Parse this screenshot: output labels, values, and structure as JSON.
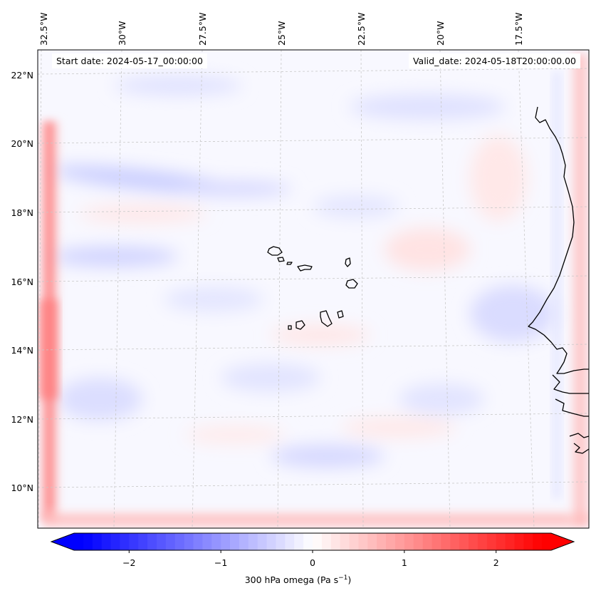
{
  "map": {
    "start_date": "Start date: 2024-05-17_00:00:00",
    "valid_date": "Valid_date: 2024-05-18T20:00:00.00",
    "lon_labels": [
      "32.5°W",
      "30°W",
      "27.5°W",
      "25°W",
      "22.5°W",
      "20°W",
      "17.5°W"
    ],
    "lat_labels": [
      "22°N",
      "20°N",
      "18°N",
      "16°N",
      "14°N",
      "12°N",
      "10°N"
    ],
    "field": "300 hPa omega",
    "extent": {
      "lon_min": -33.0,
      "lon_max": -15.2,
      "lat_min": 8.8,
      "lat_max": 22.7
    }
  },
  "colorbar": {
    "label_prefix": "300 hPa omega (Pa s",
    "label_exp": "−1",
    "label_suffix": ")",
    "ticks": [
      "−2",
      "−1",
      "0",
      "1",
      "2"
    ],
    "tick_values": [
      -2,
      -1,
      0,
      1,
      2
    ],
    "range": [
      -2.6,
      2.6
    ],
    "cmap": "bwr",
    "color_min": "#0000ff",
    "color_mid": "#ffffff",
    "color_max": "#ff0000"
  }
}
